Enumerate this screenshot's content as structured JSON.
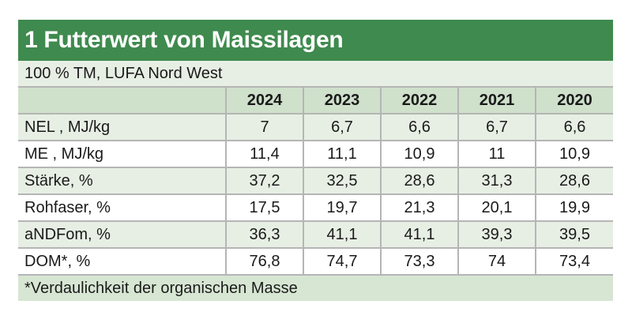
{
  "title": "1 Futterwert von Maissilagen",
  "subtitle": "100 % TM, LUFA Nord West",
  "table": {
    "columns": [
      "",
      "2024",
      "2023",
      "2022",
      "2021",
      "2020"
    ],
    "rows": [
      [
        "NEL , MJ/kg",
        "7",
        "6,7",
        "6,6",
        "6,7",
        "6,6"
      ],
      [
        "ME , MJ/kg",
        "11,4",
        "11,1",
        "10,9",
        "11",
        "10,9"
      ],
      [
        "Stärke, %",
        "37,2",
        "32,5",
        "28,6",
        "31,3",
        "28,6"
      ],
      [
        "Rohfaser, %",
        "17,5",
        "19,7",
        "21,3",
        "20,1",
        "19,9"
      ],
      [
        "aNDFom, %",
        "36,3",
        "41,1",
        "41,1",
        "39,3",
        "39,5"
      ],
      [
        "DOM*, %",
        "76,8",
        "74,7",
        "73,3",
        "74",
        "73,4"
      ]
    ]
  },
  "footnote": "*Verdaulichkeit der organischen Masse",
  "colors": {
    "title_bar": "#3f8a4e",
    "header_row": "#cfe0cb",
    "band_light": "#e7efe4",
    "footnote_bg": "#d7e6d3",
    "grid_line": "#b5b5b5"
  }
}
